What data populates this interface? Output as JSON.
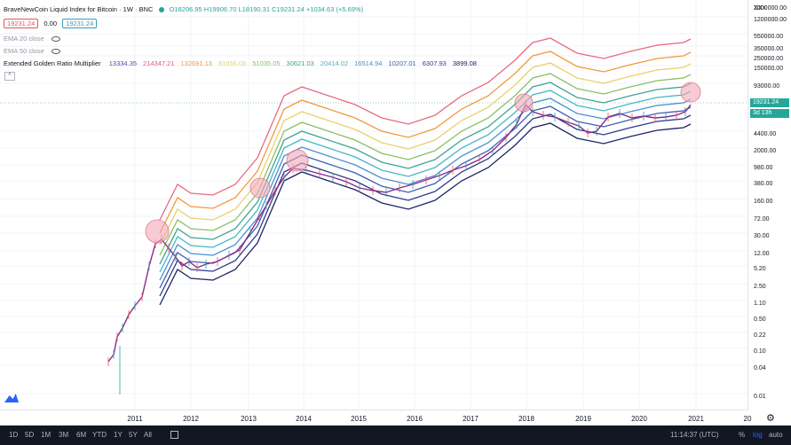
{
  "header": {
    "title": "BraveNewCoin Liquid Index for Bitcoin · 1W · BNC",
    "ohlc": "O18206.95 H19906.70 L18190.31 C19231.24 +1034.63 (+5.69%)",
    "price_box_red": "19231.24",
    "price_zero": "0.00",
    "price_box_teal": "19231.24",
    "ema20": "EMA 20 close",
    "ema50": "EMA 50 close",
    "indicator_name": "Extended Golden Ratio Multiplier",
    "multiplier_values": [
      {
        "v": "13334.35",
        "color": "#4a4fa8"
      },
      {
        "v": "214347.21",
        "color": "#e0567e"
      },
      {
        "v": "132691.13",
        "color": "#f09a3e"
      },
      {
        "v": "81656.08",
        "color": "#e6d36a"
      },
      {
        "v": "51035.05",
        "color": "#8ac064"
      },
      {
        "v": "30621.03",
        "color": "#3fa58e"
      },
      {
        "v": "20414.02",
        "color": "#45b8c4"
      },
      {
        "v": "16514.94",
        "color": "#4d8fd0"
      },
      {
        "v": "10207.01",
        "color": "#3e5fb0"
      },
      {
        "v": "6307.93",
        "color": "#303a8a"
      },
      {
        "v": "3899.08",
        "color": "#1e2466"
      }
    ]
  },
  "price_scale": {
    "currency": "XXX",
    "ticks": [
      "2000000.00",
      "1200000.00",
      "550000.00",
      "350000.00",
      "250000.00",
      "150000.00",
      "93000.00",
      "19231.24",
      "3d 13h",
      "4400.00",
      "2000.00",
      "980.00",
      "380.00",
      "160.00",
      "72.00",
      "30.00",
      "12.00",
      "5.20",
      "2.50",
      "1.10",
      "0.50",
      "0.22",
      "0.10",
      "0.04",
      "0.01"
    ],
    "current_price": "19231.24",
    "countdown": "3d 13h"
  },
  "time_scale": {
    "labels": [
      "2011",
      "2012",
      "2013",
      "2014",
      "2015",
      "2016",
      "2017",
      "2018",
      "2019",
      "2020",
      "2021",
      "20"
    ]
  },
  "bottom_bar": {
    "ranges": [
      "1D",
      "5D",
      "1M",
      "3M",
      "6M",
      "YTD",
      "1Y",
      "5Y",
      "All"
    ],
    "clock": "11:14:37 (UTC)",
    "percent": "%",
    "log": "log",
    "auto": "auto"
  },
  "colors": {
    "band_colors": [
      "#e96a7e",
      "#f09a3e",
      "#e6d36a",
      "#8ac064",
      "#3fa58e",
      "#45b8c4",
      "#4d8fd0",
      "#3e5fb0",
      "#303a8a",
      "#1e2466"
    ],
    "price_line": "#8b2a8e",
    "highlight": "#f4a8b8"
  }
}
